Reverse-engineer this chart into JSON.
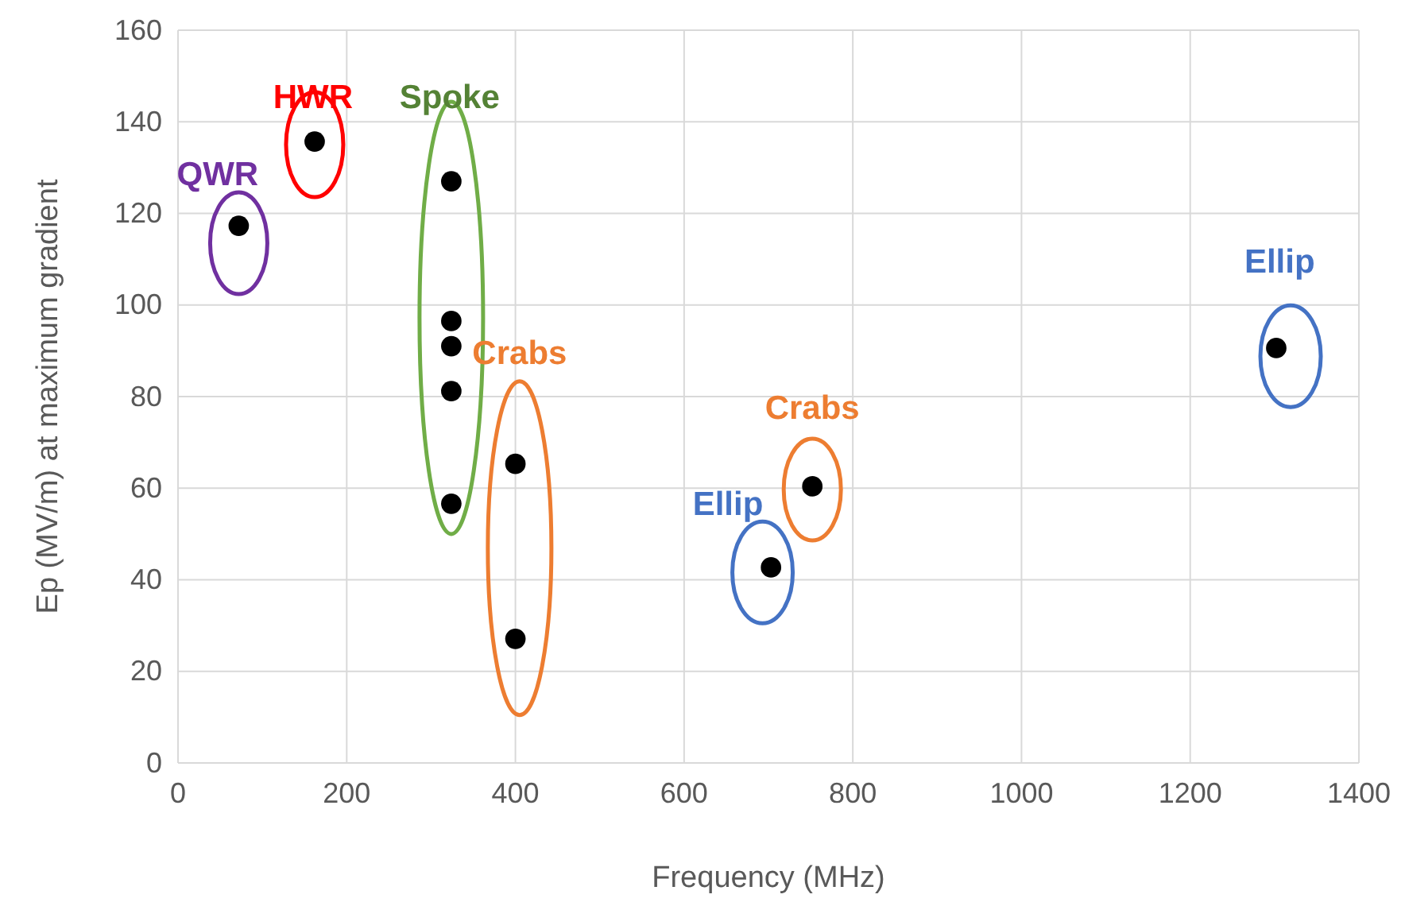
{
  "chart_data": {
    "type": "scatter",
    "xlabel": "Frequency (MHz)",
    "ylabel": "Ep (MV/m) at maximum gradient",
    "xlim": [
      0,
      1400
    ],
    "ylim": [
      0,
      160
    ],
    "xticks": [
      0,
      200,
      400,
      600,
      800,
      1000,
      1200,
      1400
    ],
    "yticks": [
      0,
      20,
      40,
      60,
      80,
      100,
      120,
      140,
      160
    ],
    "grid": true,
    "marker": "circle",
    "series": [
      {
        "color": "#000000",
        "x": [
          72,
          162,
          324,
          324,
          324,
          324,
          324,
          400,
          400,
          703,
          752,
          1302
        ],
        "values": [
          117.3,
          135.7,
          127,
          96.5,
          91,
          81.2,
          56.6,
          65.3,
          27.1,
          42.7,
          60.4,
          90.6
        ]
      }
    ],
    "annotations": [
      "QWR",
      "HWR",
      "Spoke",
      "Crabs",
      "Ellip",
      "Crabs",
      "Ellip"
    ]
  }
}
